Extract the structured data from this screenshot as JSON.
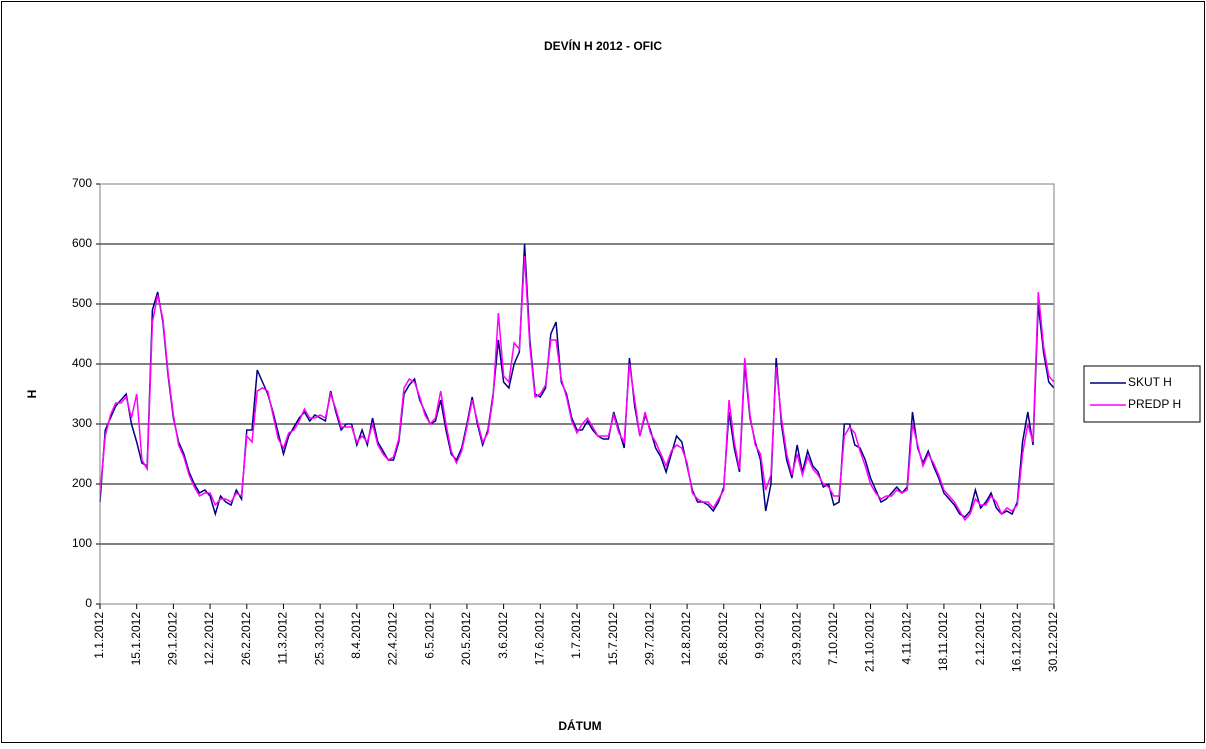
{
  "chart_data": {
    "type": "line",
    "title": "DEVÍN  H  2012 - OFIC",
    "x_label": "DÁTUM",
    "y_label": "H",
    "categories": [
      "1.1.2012",
      null,
      null,
      null,
      null,
      null,
      null,
      "15.1.2012",
      null,
      null,
      null,
      null,
      null,
      null,
      "29.1.2012",
      null,
      null,
      null,
      null,
      null,
      null,
      "12.2.2012",
      null,
      null,
      null,
      null,
      null,
      null,
      "26.2.2012",
      null,
      null,
      null,
      null,
      null,
      null,
      "11.3.2012",
      null,
      null,
      null,
      null,
      null,
      null,
      "25.3.2012",
      null,
      null,
      null,
      null,
      null,
      null,
      "8.4.2012",
      null,
      null,
      null,
      null,
      null,
      null,
      "22.4.2012",
      null,
      null,
      null,
      null,
      null,
      null,
      "6.5.2012",
      null,
      null,
      null,
      null,
      null,
      null,
      "20.5.2012",
      null,
      null,
      null,
      null,
      null,
      null,
      "3.6.2012",
      null,
      null,
      null,
      null,
      null,
      null,
      "17.6.2012",
      null,
      null,
      null,
      null,
      null,
      null,
      "1.7.2012",
      null,
      null,
      null,
      null,
      null,
      null,
      "15.7.2012",
      null,
      null,
      null,
      null,
      null,
      null,
      "29.7.2012",
      null,
      null,
      null,
      null,
      null,
      null,
      "12.8.2012",
      null,
      null,
      null,
      null,
      null,
      null,
      "26.8.2012",
      null,
      null,
      null,
      null,
      null,
      null,
      "9.9.2012",
      null,
      null,
      null,
      null,
      null,
      null,
      "23.9.2012",
      null,
      null,
      null,
      null,
      null,
      null,
      "7.10.2012",
      null,
      null,
      null,
      null,
      null,
      null,
      "21.10.2012",
      null,
      null,
      null,
      null,
      null,
      null,
      "4.11.2012",
      null,
      null,
      null,
      null,
      null,
      null,
      "18.11.2012",
      null,
      null,
      null,
      null,
      null,
      null,
      "2.12.2012",
      null,
      null,
      null,
      null,
      null,
      null,
      "16.12.2012",
      null,
      null,
      null,
      null,
      null,
      null,
      "30.12.2012"
    ],
    "series": [
      {
        "name": "SKUT H",
        "color": "#000080",
        "values": [
          170,
          290,
          310,
          330,
          340,
          350,
          300,
          270,
          235,
          230,
          490,
          520,
          470,
          380,
          310,
          270,
          250,
          220,
          200,
          185,
          190,
          180,
          150,
          180,
          170,
          165,
          190,
          175,
          290,
          290,
          390,
          370,
          350,
          320,
          285,
          250,
          280,
          295,
          310,
          320,
          305,
          315,
          310,
          305,
          355,
          320,
          290,
          300,
          300,
          265,
          290,
          265,
          310,
          270,
          255,
          240,
          240,
          270,
          350,
          365,
          375,
          340,
          320,
          300,
          305,
          340,
          290,
          250,
          240,
          260,
          300,
          345,
          300,
          265,
          290,
          350,
          440,
          370,
          360,
          400,
          420,
          600,
          440,
          350,
          345,
          360,
          450,
          470,
          370,
          350,
          310,
          290,
          290,
          305,
          290,
          280,
          275,
          275,
          320,
          290,
          260,
          410,
          330,
          280,
          315,
          290,
          260,
          245,
          220,
          250,
          280,
          270,
          230,
          190,
          170,
          170,
          165,
          155,
          170,
          195,
          320,
          260,
          220,
          400,
          310,
          270,
          240,
          155,
          200,
          410,
          300,
          240,
          210,
          265,
          220,
          255,
          230,
          220,
          195,
          200,
          165,
          170,
          300,
          300,
          265,
          260,
          240,
          210,
          190,
          170,
          175,
          185,
          195,
          185,
          195,
          320,
          260,
          235,
          255,
          230,
          210,
          185,
          175,
          165,
          150,
          145,
          155,
          190,
          160,
          170,
          185,
          160,
          150,
          155,
          150,
          170,
          270,
          320,
          265,
          500,
          420,
          370,
          360
        ]
      },
      {
        "name": "PREDP H",
        "color": "#ff00ff",
        "values": [
          185,
          280,
          315,
          335,
          335,
          345,
          310,
          350,
          240,
          225,
          470,
          515,
          475,
          385,
          315,
          265,
          245,
          215,
          195,
          180,
          185,
          185,
          165,
          175,
          175,
          170,
          185,
          180,
          280,
          270,
          355,
          360,
          355,
          315,
          275,
          260,
          285,
          290,
          305,
          325,
          310,
          310,
          315,
          310,
          350,
          325,
          295,
          295,
          295,
          270,
          280,
          270,
          300,
          265,
          250,
          240,
          245,
          275,
          360,
          375,
          370,
          345,
          315,
          300,
          310,
          355,
          300,
          255,
          235,
          255,
          295,
          340,
          305,
          270,
          285,
          345,
          485,
          380,
          370,
          435,
          425,
          580,
          430,
          345,
          350,
          365,
          440,
          440,
          375,
          345,
          305,
          285,
          300,
          310,
          295,
          280,
          280,
          280,
          315,
          285,
          270,
          400,
          340,
          280,
          320,
          285,
          270,
          250,
          230,
          255,
          265,
          260,
          235,
          185,
          175,
          170,
          170,
          160,
          175,
          190,
          340,
          270,
          225,
          410,
          315,
          265,
          250,
          190,
          215,
          395,
          310,
          250,
          215,
          250,
          215,
          245,
          225,
          215,
          200,
          195,
          180,
          180,
          280,
          295,
          285,
          255,
          230,
          200,
          185,
          175,
          180,
          180,
          190,
          185,
          190,
          300,
          265,
          230,
          250,
          235,
          215,
          190,
          180,
          170,
          155,
          140,
          150,
          175,
          165,
          165,
          180,
          170,
          150,
          160,
          155,
          165,
          250,
          300,
          270,
          520,
          430,
          380,
          370
        ]
      }
    ],
    "ylim": [
      0,
      700
    ],
    "yticks": [
      0,
      100,
      200,
      300,
      400,
      500,
      600,
      700
    ],
    "grid": true,
    "legend": "right"
  }
}
